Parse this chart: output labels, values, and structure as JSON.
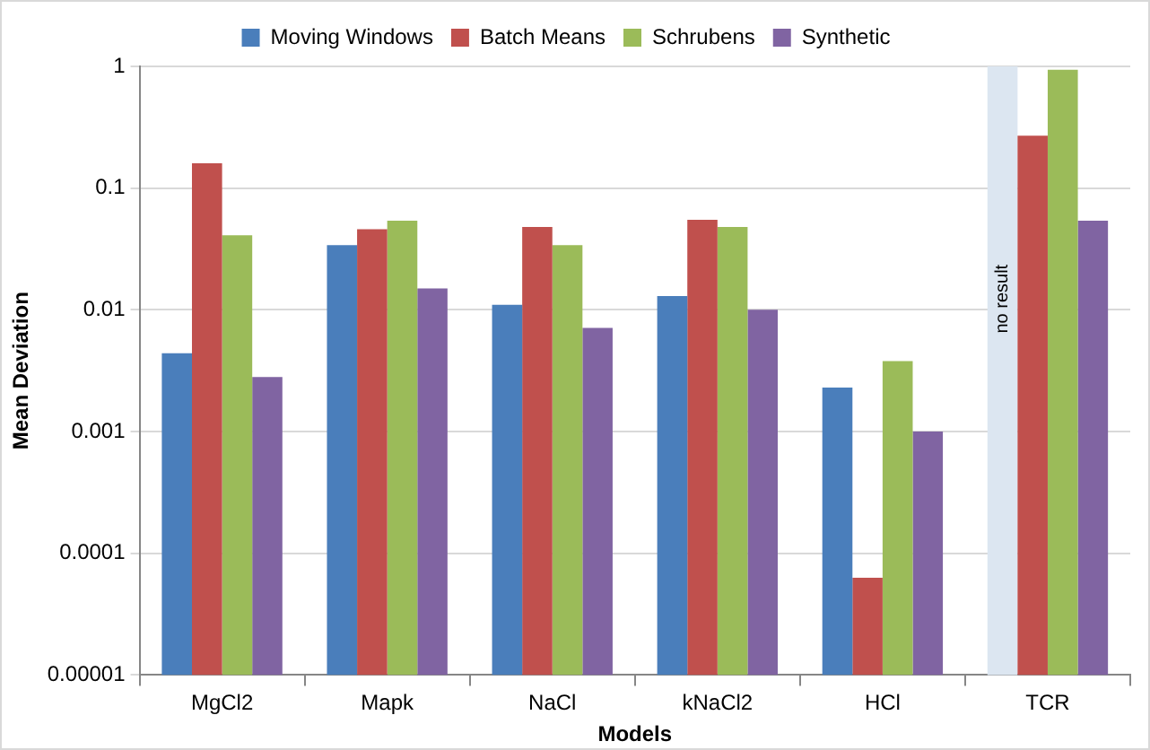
{
  "chart_data": {
    "type": "bar",
    "xlabel": "Models",
    "ylabel": "Mean Deviation",
    "categories": [
      "MgCl2",
      "Mapk",
      "NaCl",
      "kNaCl2",
      "HCl",
      "TCR"
    ],
    "series": [
      {
        "name": "Moving Windows",
        "color": "#4a7ebb",
        "values": [
          0.0044,
          0.034,
          0.011,
          0.013,
          0.0023,
          null
        ]
      },
      {
        "name": "Batch Means",
        "color": "#c0504d",
        "values": [
          0.16,
          0.046,
          0.048,
          0.055,
          6.3e-05,
          0.27
        ]
      },
      {
        "name": "Schrubens",
        "color": "#9bbb59",
        "values": [
          0.041,
          0.054,
          0.034,
          0.048,
          0.0038,
          0.94
        ]
      },
      {
        "name": "Synthetic",
        "color": "#8064a2",
        "values": [
          0.0028,
          0.015,
          0.0071,
          0.01,
          0.001,
          0.054
        ]
      }
    ],
    "log": true,
    "ylim": [
      1e-05,
      1
    ],
    "yticks": [
      {
        "value": 1e-05,
        "label": "0.00001"
      },
      0.0001,
      0.001,
      0.01,
      0.1,
      1
    ],
    "bands": [
      {
        "axis": "x",
        "from": "TCR",
        "to": "TCR",
        "label": "no result",
        "color": "#dce6f1"
      }
    ],
    "grid": "y",
    "legend": "top"
  }
}
